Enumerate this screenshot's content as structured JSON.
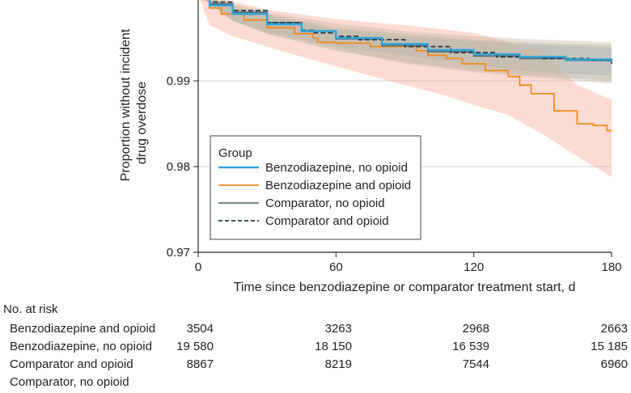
{
  "chart_data": {
    "type": "line",
    "subtype": "kaplan-meier",
    "ylabel_lines": [
      "Proportion without incident",
      "drug overdose"
    ],
    "xlabel": "Time since benzodiazepine or comparator treatment start, d",
    "xlim": [
      0,
      180
    ],
    "ylim": [
      0.97,
      1.0
    ],
    "x_ticks": [
      "0",
      "60",
      "120",
      "180"
    ],
    "x_tick_values": [
      0,
      60,
      120,
      180
    ],
    "y_ticks": [
      "0.97",
      "0.98",
      "0.99"
    ],
    "y_tick_values": [
      0.97,
      0.98,
      0.99
    ],
    "grid": "horizontal",
    "legend_title": "Group",
    "legend_position": "bottom-center",
    "series": [
      {
        "name": "Benzodiazepine, no opioid",
        "color": "#2fa4d8",
        "style": "solid",
        "ci_color": "#7ba7d6",
        "points": [
          [
            0,
            1.0
          ],
          [
            5,
            0.9988
          ],
          [
            15,
            0.9978
          ],
          [
            30,
            0.9966
          ],
          [
            45,
            0.9958
          ],
          [
            60,
            0.995
          ],
          [
            80,
            0.9943
          ],
          [
            100,
            0.9936
          ],
          [
            120,
            0.9931
          ],
          [
            140,
            0.9928
          ],
          [
            160,
            0.9925
          ],
          [
            180,
            0.9923
          ]
        ],
        "ci_upper": [
          [
            0,
            1.0
          ],
          [
            15,
            0.9985
          ],
          [
            30,
            0.9975
          ],
          [
            60,
            0.996
          ],
          [
            90,
            0.9952
          ],
          [
            120,
            0.9946
          ],
          [
            150,
            0.9942
          ],
          [
            180,
            0.9939
          ]
        ],
        "ci_lower": [
          [
            0,
            1.0
          ],
          [
            15,
            0.997
          ],
          [
            30,
            0.9957
          ],
          [
            60,
            0.994
          ],
          [
            90,
            0.993
          ],
          [
            120,
            0.9918
          ],
          [
            150,
            0.991
          ],
          [
            180,
            0.9906
          ]
        ]
      },
      {
        "name": "Benzodiazepine and opioid",
        "color": "#f08c1e",
        "style": "solid",
        "ci_color": "#f4a58f",
        "points": [
          [
            0,
            1.0
          ],
          [
            2,
            0.9995
          ],
          [
            5,
            0.9985
          ],
          [
            10,
            0.9978
          ],
          [
            20,
            0.9971
          ],
          [
            30,
            0.9962
          ],
          [
            42,
            0.9955
          ],
          [
            50,
            0.995
          ],
          [
            52,
            0.9945
          ],
          [
            60,
            0.9944
          ],
          [
            75,
            0.994
          ],
          [
            90,
            0.994
          ],
          [
            95,
            0.9935
          ],
          [
            100,
            0.993
          ],
          [
            108,
            0.9926
          ],
          [
            115,
            0.992
          ],
          [
            125,
            0.9912
          ],
          [
            135,
            0.9905
          ],
          [
            140,
            0.9895
          ],
          [
            145,
            0.9885
          ],
          [
            155,
            0.9865
          ],
          [
            165,
            0.985
          ],
          [
            172,
            0.9848
          ],
          [
            178,
            0.9842
          ],
          [
            180,
            0.9842
          ]
        ],
        "ci_upper": [
          [
            0,
            1.0
          ],
          [
            10,
            0.9996
          ],
          [
            30,
            0.9983
          ],
          [
            60,
            0.9972
          ],
          [
            90,
            0.9965
          ],
          [
            120,
            0.9956
          ],
          [
            150,
            0.9935
          ],
          [
            165,
            0.9895
          ],
          [
            180,
            0.9878
          ]
        ],
        "ci_lower": [
          [
            0,
            1.0
          ],
          [
            5,
            0.9965
          ],
          [
            15,
            0.9952
          ],
          [
            30,
            0.994
          ],
          [
            45,
            0.9928
          ],
          [
            60,
            0.9917
          ],
          [
            75,
            0.9906
          ],
          [
            90,
            0.9895
          ],
          [
            105,
            0.9885
          ],
          [
            120,
            0.9872
          ],
          [
            135,
            0.986
          ],
          [
            150,
            0.9838
          ],
          [
            165,
            0.9812
          ],
          [
            180,
            0.9788
          ]
        ]
      },
      {
        "name": "Comparator, no opioid",
        "color": "#5a6e78",
        "style": "solid",
        "ci_color": "#a9b9a0",
        "points": [
          [
            0,
            1.0
          ],
          [
            5,
            0.999
          ],
          [
            15,
            0.998
          ],
          [
            30,
            0.9968
          ],
          [
            45,
            0.9958
          ],
          [
            60,
            0.9949
          ],
          [
            80,
            0.9941
          ],
          [
            100,
            0.9934
          ],
          [
            120,
            0.9929
          ],
          [
            140,
            0.9926
          ],
          [
            160,
            0.9924
          ],
          [
            180,
            0.9922
          ]
        ],
        "ci_upper": [
          [
            0,
            1.0
          ],
          [
            15,
            0.9988
          ],
          [
            30,
            0.9978
          ],
          [
            60,
            0.9962
          ],
          [
            90,
            0.9955
          ],
          [
            120,
            0.9948
          ],
          [
            150,
            0.9944
          ],
          [
            180,
            0.9942
          ]
        ],
        "ci_lower": [
          [
            0,
            1.0
          ],
          [
            15,
            0.997
          ],
          [
            30,
            0.9955
          ],
          [
            60,
            0.9935
          ],
          [
            90,
            0.9922
          ],
          [
            120,
            0.9912
          ],
          [
            150,
            0.9905
          ],
          [
            180,
            0.99
          ]
        ]
      },
      {
        "name": "Comparator and opioid",
        "color": "#243848",
        "style": "dashed",
        "ci_color": "#c7b7a5",
        "points": [
          [
            0,
            1.0
          ],
          [
            5,
            0.9992
          ],
          [
            15,
            0.9982
          ],
          [
            30,
            0.9968
          ],
          [
            45,
            0.9959
          ],
          [
            50,
            0.9956
          ],
          [
            60,
            0.9952
          ],
          [
            70,
            0.9948
          ],
          [
            90,
            0.994
          ],
          [
            110,
            0.9933
          ],
          [
            130,
            0.9928
          ],
          [
            150,
            0.9926
          ],
          [
            170,
            0.9924
          ],
          [
            180,
            0.992
          ]
        ],
        "ci_upper": [
          [
            0,
            1.0
          ],
          [
            15,
            0.999
          ],
          [
            30,
            0.998
          ],
          [
            60,
            0.9967
          ],
          [
            90,
            0.9958
          ],
          [
            120,
            0.9952
          ],
          [
            150,
            0.9948
          ],
          [
            180,
            0.9945
          ]
        ],
        "ci_lower": [
          [
            0,
            1.0
          ],
          [
            15,
            0.997
          ],
          [
            30,
            0.9955
          ],
          [
            60,
            0.9937
          ],
          [
            90,
            0.992
          ],
          [
            120,
            0.991
          ],
          [
            150,
            0.9903
          ],
          [
            180,
            0.9897
          ]
        ]
      }
    ],
    "at_risk": {
      "title": "No. at risk",
      "rows": [
        {
          "label": "Benzodiazepine and opioid",
          "values": [
            "3504",
            "3263",
            "2968",
            "2663"
          ]
        },
        {
          "label": "Benzodiazepine, no opioid",
          "values": [
            "19 580",
            "18 150",
            "16 539",
            "15 185"
          ]
        },
        {
          "label": "Comparator and opioid",
          "values": [
            "8867",
            "8219",
            "7544",
            "6960"
          ]
        },
        {
          "label": "Comparator, no opioid",
          "values": [
            "",
            "",
            "",
            ""
          ]
        }
      ]
    }
  }
}
